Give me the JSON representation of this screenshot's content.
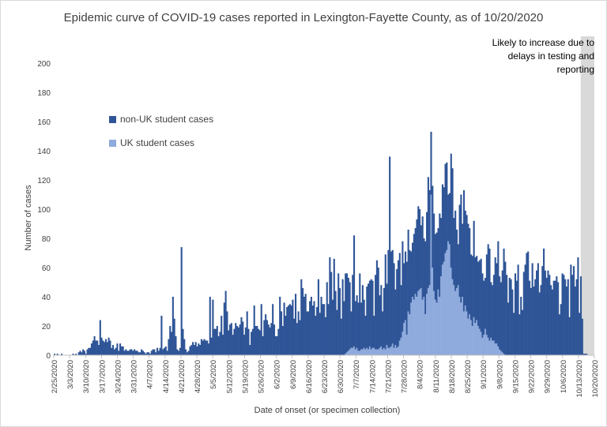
{
  "chart_data": {
    "type": "bar",
    "stacked": true,
    "title": "Epidemic curve of COVID-19 cases reported in Lexington-Fayette County, as of 10/20/2020",
    "xlabel": "Date of onset (or specimen collection)",
    "ylabel": "Number of cases",
    "ylim": [
      0,
      200
    ],
    "yticks": [
      0,
      20,
      40,
      60,
      80,
      100,
      120,
      140,
      160,
      180,
      200
    ],
    "x_tick_labels": [
      "2/25/2020",
      "3/3/2020",
      "3/10/2020",
      "3/17/2020",
      "3/24/2020",
      "3/31/2020",
      "4/7/2020",
      "4/14/2020",
      "4/21/2020",
      "4/28/2020",
      "5/5/2020",
      "5/12/2020",
      "5/19/2020",
      "5/26/2020",
      "6/2/2020",
      "6/9/2020",
      "6/16/2020",
      "6/23/2020",
      "6/30/2020",
      "7/7/2020",
      "7/14/2020",
      "7/21/2020",
      "7/28/2020",
      "8/4/2020",
      "8/11/2020",
      "8/18/2020",
      "8/25/2020",
      "9/1/2020",
      "9/8/2020",
      "9/15/2020",
      "9/22/2020",
      "9/29/2020",
      "10/6/2020",
      "10/13/2020",
      "10/20/2020"
    ],
    "x_start": "2/25/2020",
    "x_end": "10/20/2020",
    "grid": false,
    "legend_position": "upper-left",
    "highlight_region": {
      "from": "10/14/2020",
      "to": "10/20/2020",
      "color": "#d9d9d9",
      "annotation": "Likely to increase due to delays in testing and reporting"
    },
    "series": [
      {
        "name": "non-UK student cases",
        "color": "#2f5597",
        "values": [
          1,
          0,
          1,
          0,
          0,
          1,
          0,
          0,
          0,
          0,
          0,
          0,
          0,
          1,
          0,
          1,
          0,
          2,
          3,
          2,
          4,
          3,
          1,
          4,
          5,
          5,
          8,
          10,
          13,
          10,
          10,
          7,
          24,
          12,
          10,
          9,
          11,
          9,
          12,
          10,
          5,
          7,
          4,
          5,
          8,
          3,
          8,
          6,
          6,
          3,
          4,
          3,
          3,
          4,
          4,
          3,
          4,
          3,
          3,
          2,
          2,
          4,
          3,
          2,
          1,
          2,
          2,
          1,
          3,
          4,
          4,
          2,
          5,
          3,
          5,
          27,
          4,
          5,
          6,
          3,
          11,
          20,
          16,
          40,
          25,
          13,
          4,
          3,
          5,
          74,
          18,
          11,
          4,
          2,
          3,
          6,
          7,
          9,
          7,
          9,
          6,
          8,
          7,
          11,
          10,
          11,
          10,
          10,
          8,
          40,
          12,
          38,
          18,
          18,
          20,
          13,
          16,
          27,
          14,
          36,
          44,
          30,
          17,
          21,
          22,
          14,
          18,
          22,
          20,
          19,
          21,
          26,
          23,
          14,
          19,
          30,
          18,
          7,
          16,
          18,
          34,
          20,
          20,
          18,
          17,
          35,
          13,
          24,
          28,
          24,
          21,
          19,
          22,
          35,
          21,
          13,
          13,
          18,
          40,
          30,
          20,
          36,
          27,
          33,
          34,
          35,
          34,
          38,
          25,
          42,
          22,
          30,
          24,
          52,
          46,
          40,
          42,
          30,
          30,
          37,
          40,
          34,
          37,
          27,
          33,
          52,
          29,
          40,
          35,
          35,
          26,
          50,
          35,
          67,
          57,
          38,
          66,
          44,
          31,
          56,
          46,
          25,
          52,
          37,
          55,
          54,
          50,
          46,
          25,
          50,
          76,
          33,
          36,
          33,
          53,
          32,
          44,
          33,
          23,
          42,
          45,
          45,
          48,
          46,
          22,
          51,
          61,
          56,
          36,
          42,
          26,
          41,
          65,
          42,
          67,
          131,
          65,
          64,
          58,
          38,
          54,
          59,
          60,
          36,
          62,
          41,
          47,
          50,
          56,
          44,
          35,
          37,
          45,
          45,
          53,
          58,
          55,
          43,
          57,
          40,
          50,
          56,
          76,
          65,
          43,
          56,
          53,
          45,
          48,
          42,
          57,
          40,
          55,
          51,
          61,
          60,
          32,
          35,
          78,
          76,
          46,
          55,
          40,
          28,
          63,
          74,
          50,
          83,
          65,
          66,
          65,
          59,
          45,
          48,
          66,
          45,
          44,
          44,
          47,
          50,
          44,
          37,
          35,
          55,
          64,
          63,
          38,
          38,
          45,
          59,
          55,
          72,
          50,
          47,
          56,
          72,
          64,
          55,
          36,
          53,
          52,
          45,
          29,
          56,
          51,
          62,
          28,
          40,
          31,
          57,
          62,
          70,
          71,
          51,
          46,
          63,
          47,
          52,
          58,
          63,
          43,
          48,
          61,
          73,
          58,
          53,
          58,
          55,
          48,
          45,
          51,
          51,
          54,
          50,
          28,
          35,
          56,
          55,
          52,
          47,
          52,
          26,
          62,
          55,
          61,
          47,
          52,
          67,
          29,
          54,
          25,
          1,
          1,
          1,
          0,
          0,
          0,
          0,
          0
        ]
      },
      {
        "name": "UK student cases",
        "color": "#8faadc",
        "values": [
          0,
          0,
          0,
          0,
          0,
          0,
          0,
          0,
          0,
          0,
          0,
          0,
          0,
          0,
          0,
          0,
          0,
          0,
          0,
          0,
          0,
          0,
          0,
          0,
          0,
          0,
          0,
          0,
          0,
          0,
          0,
          0,
          0,
          0,
          0,
          0,
          0,
          0,
          0,
          0,
          0,
          0,
          0,
          0,
          0,
          0,
          0,
          0,
          0,
          0,
          0,
          0,
          0,
          0,
          0,
          0,
          0,
          0,
          0,
          0,
          0,
          0,
          0,
          0,
          0,
          0,
          0,
          0,
          0,
          0,
          0,
          0,
          0,
          0,
          0,
          0,
          0,
          0,
          0,
          0,
          0,
          0,
          0,
          0,
          0,
          0,
          0,
          0,
          0,
          0,
          0,
          0,
          0,
          0,
          0,
          0,
          0,
          0,
          0,
          0,
          0,
          0,
          0,
          0,
          0,
          0,
          0,
          0,
          0,
          0,
          0,
          0,
          0,
          0,
          0,
          0,
          0,
          0,
          0,
          0,
          0,
          0,
          0,
          0,
          0,
          0,
          0,
          0,
          0,
          0,
          0,
          0,
          0,
          0,
          0,
          0,
          0,
          0,
          0,
          0,
          0,
          0,
          0,
          0,
          0,
          0,
          0,
          0,
          0,
          0,
          0,
          0,
          0,
          0,
          0,
          0,
          0,
          0,
          0,
          0,
          0,
          0,
          0,
          0,
          0,
          0,
          0,
          0,
          0,
          0,
          0,
          0,
          0,
          0,
          0,
          0,
          0,
          0,
          0,
          0,
          0,
          0,
          0,
          0,
          0,
          0,
          0,
          0,
          0,
          0,
          0,
          0,
          0,
          0,
          0,
          0,
          0,
          0,
          0,
          0,
          0,
          0,
          0,
          0,
          1,
          2,
          3,
          4,
          5,
          5,
          6,
          4,
          5,
          3,
          3,
          4,
          4,
          5,
          4,
          5,
          4,
          6,
          4,
          5,
          5,
          4,
          4,
          4,
          5,
          6,
          4,
          5,
          4,
          7,
          5,
          5,
          6,
          8,
          5,
          7,
          5,
          6,
          10,
          12,
          16,
          22,
          24,
          14,
          30,
          28,
          36,
          40,
          38,
          42,
          40,
          44,
          45,
          46,
          38,
          40,
          28,
          42,
          46,
          48,
          110,
          60,
          44,
          38,
          36,
          45,
          40,
          54,
          62,
          64,
          70,
          72,
          78,
          76,
          60,
          52,
          48,
          44,
          46,
          48,
          40,
          36,
          40,
          30,
          34,
          30,
          25,
          28,
          24,
          20,
          26,
          22,
          24,
          20,
          18,
          16,
          12,
          14,
          18,
          14,
          12,
          10,
          12,
          10,
          10,
          8,
          8,
          6,
          4,
          3,
          2,
          1,
          0,
          0,
          0,
          0,
          0,
          0,
          0,
          0,
          0,
          0,
          0,
          0,
          0,
          0,
          0,
          0,
          0,
          0,
          0,
          0,
          0,
          0,
          0,
          0,
          0,
          0,
          0,
          0,
          0,
          0,
          0,
          0,
          0,
          0,
          0,
          0,
          0,
          0,
          0,
          0,
          0,
          0,
          0,
          0,
          0,
          0,
          0,
          0,
          0,
          0,
          0,
          0,
          0,
          0,
          0,
          0,
          0,
          0,
          0,
          0,
          0,
          0,
          0,
          0,
          0,
          0,
          0,
          0,
          0,
          0,
          0,
          0,
          0,
          0,
          0,
          0,
          0,
          0,
          0,
          0,
          0,
          0,
          0,
          0,
          0,
          0,
          0,
          0,
          0,
          0,
          0,
          0,
          0,
          0
        ]
      }
    ]
  }
}
